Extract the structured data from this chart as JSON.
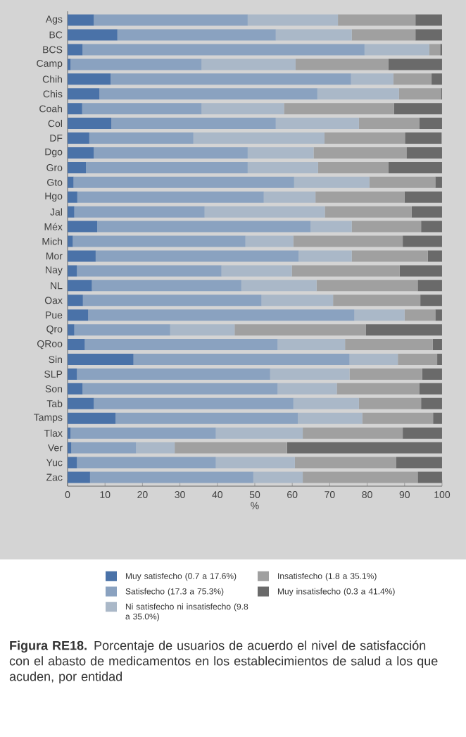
{
  "chart_data": {
    "type": "bar",
    "orientation": "horizontal",
    "stacked": true,
    "title": "**Figura RE18.** Porcentaje de usuarios de acuerdo el nivel de satisfacción con el abasto de medicamentos en los establecimientos de salud a los que acuden, por entidad",
    "xlabel": "%",
    "categories": [
      "Ags",
      "BC",
      "BCS",
      "Camp",
      "Chih",
      "Chis",
      "Coah",
      "Col",
      "DF",
      "Dgo",
      "Gro",
      "Gto",
      "Hgo",
      "Jal",
      "Méx",
      "Mich",
      "Mor",
      "Nay",
      "NL",
      "Oax",
      "Pue",
      "Qro",
      "QRoo",
      "Sin",
      "SLP",
      "Son",
      "Tab",
      "Tamps",
      "Tlax",
      "Ver",
      "Yuc",
      "Zac"
    ],
    "series": [
      {
        "name": "Muy satisfecho (0.7 a 17.6%)",
        "color": "#4a72a8",
        "values": [
          7.0,
          13.3,
          4.0,
          0.8,
          11.5,
          8.5,
          3.9,
          11.7,
          5.8,
          7.0,
          4.9,
          1.6,
          2.6,
          1.8,
          7.9,
          1.4,
          7.5,
          2.5,
          6.5,
          4.1,
          5.5,
          1.8,
          4.6,
          17.6,
          2.5,
          4.0,
          7.0,
          12.8,
          0.8,
          1.0,
          2.5,
          6.0
        ]
      },
      {
        "name": "Satisfecho (17.3 a 75.3%)",
        "color": "#8aa2c0",
        "values": [
          41.1,
          42.3,
          75.3,
          35.0,
          64.2,
          58.2,
          31.9,
          43.9,
          27.8,
          41.1,
          43.2,
          58.9,
          49.8,
          34.8,
          57.0,
          46.1,
          54.2,
          38.6,
          39.9,
          47.7,
          71.1,
          25.6,
          51.5,
          57.7,
          51.6,
          52.1,
          53.3,
          48.7,
          38.8,
          17.3,
          37.1,
          43.6
        ]
      },
      {
        "name": "Ni satisfecho ni insatisfecho (9.8 a 35.0%)",
        "color": "#aab8c8",
        "values": [
          24.1,
          20.3,
          17.3,
          25.1,
          11.3,
          21.8,
          22.0,
          22.2,
          35.0,
          17.6,
          18.8,
          20.1,
          13.8,
          32.1,
          11.0,
          12.8,
          14.2,
          18.8,
          20.1,
          19.1,
          13.4,
          17.2,
          18.0,
          12.9,
          21.2,
          15.8,
          17.5,
          17.2,
          23.2,
          10.3,
          21.1,
          13.2
        ]
      },
      {
        "name": "Insatisfecho (1.8 a 35.1%)",
        "color": "#a0a0a0",
        "values": [
          20.7,
          17.0,
          2.9,
          24.8,
          10.2,
          11.2,
          29.4,
          16.1,
          21.5,
          24.8,
          18.8,
          17.6,
          23.8,
          23.2,
          18.5,
          29.2,
          20.3,
          28.8,
          27.0,
          23.3,
          8.2,
          35.1,
          23.4,
          10.5,
          19.4,
          22.0,
          16.6,
          18.9,
          26.7,
          30.0,
          27.0,
          30.7
        ]
      },
      {
        "name": "Muy insatisfecho (0.3 a 41.4%)",
        "color": "#6a6a6a",
        "values": [
          7.1,
          7.1,
          0.5,
          14.3,
          2.8,
          0.3,
          12.8,
          6.1,
          9.8,
          9.5,
          14.3,
          1.8,
          10.0,
          8.1,
          5.6,
          10.5,
          3.8,
          11.3,
          6.5,
          5.8,
          1.8,
          20.3,
          2.5,
          1.3,
          5.3,
          6.1,
          5.6,
          2.4,
          10.5,
          41.4,
          12.3,
          6.5
        ]
      }
    ],
    "xlim": [
      0,
      100
    ],
    "xticks": [
      0,
      10,
      20,
      30,
      40,
      50,
      60,
      70,
      80,
      90,
      100
    ],
    "legend": "bottom"
  }
}
